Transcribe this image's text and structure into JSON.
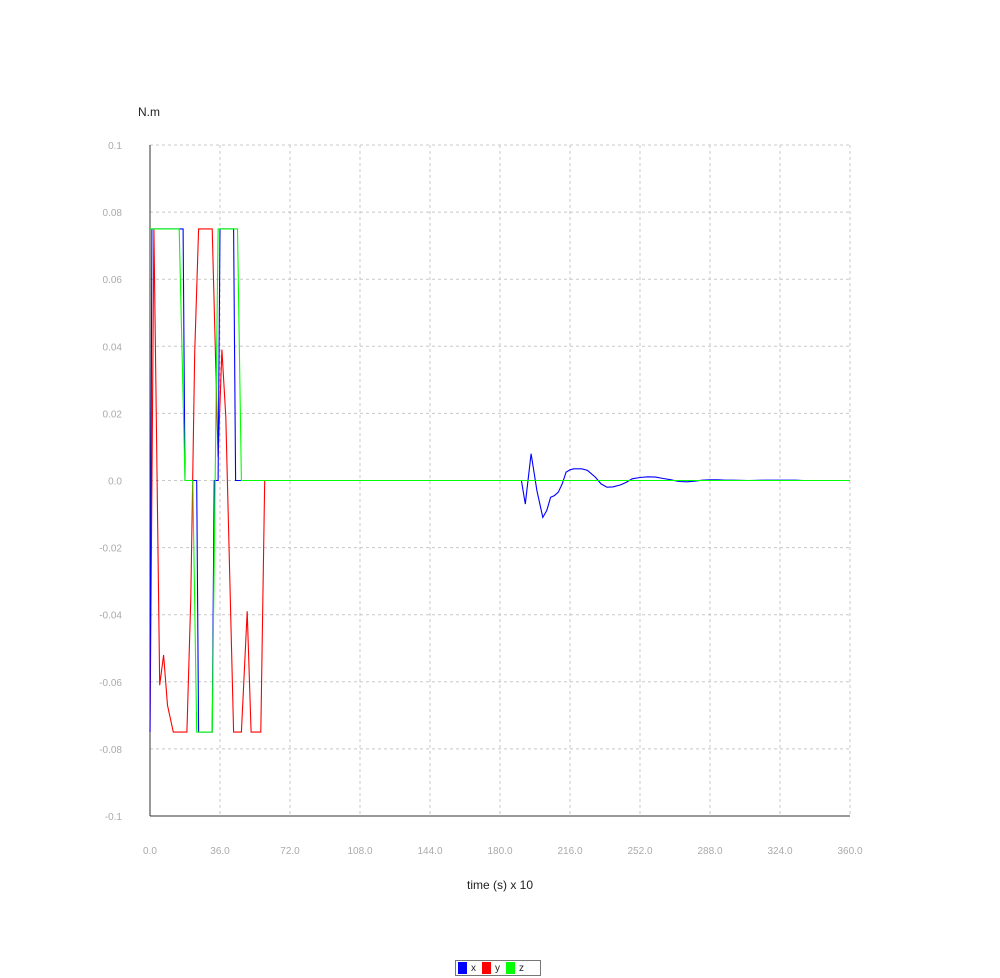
{
  "chart_data": {
    "type": "line",
    "title": "",
    "ylabel": "N.m",
    "xlabel": "time (s) x 10",
    "xlim": [
      0,
      360
    ],
    "ylim": [
      -0.1,
      0.1
    ],
    "x_ticks": [
      "0.0",
      "36.0",
      "72.0",
      "108.0",
      "144.0",
      "180.0",
      "216.0",
      "252.0",
      "288.0",
      "324.0",
      "360.0"
    ],
    "y_ticks": [
      "0.1",
      "0.08",
      "0.06",
      "0.04",
      "0.02",
      "0.0",
      "-0.02",
      "-0.04",
      "-0.06",
      "-0.08",
      "-0.1"
    ],
    "grid": true,
    "legend_position": "bottom-center",
    "series": [
      {
        "name": "x",
        "color": "#0000ff",
        "points": [
          [
            0,
            -0.075
          ],
          [
            1,
            0.075
          ],
          [
            17,
            0.075
          ],
          [
            18,
            0
          ],
          [
            24,
            0
          ],
          [
            25,
            -0.075
          ],
          [
            32,
            -0.075
          ],
          [
            33,
            0
          ],
          [
            35,
            0
          ],
          [
            36,
            0.075
          ],
          [
            43,
            0.075
          ],
          [
            44,
            0
          ],
          [
            186,
            0
          ],
          [
            191,
            0
          ],
          [
            193,
            -0.007
          ],
          [
            196,
            0.008
          ],
          [
            199,
            -0.003
          ],
          [
            202,
            -0.011
          ],
          [
            204,
            -0.009
          ],
          [
            206,
            -0.005
          ],
          [
            208,
            -0.0045
          ],
          [
            210,
            -0.0035
          ],
          [
            212,
            -0.001
          ],
          [
            214,
            0.0025
          ],
          [
            216,
            0.0032
          ],
          [
            218,
            0.0035
          ],
          [
            222,
            0.0035
          ],
          [
            225,
            0.003
          ],
          [
            229,
            0.001
          ],
          [
            232,
            -0.001
          ],
          [
            235,
            -0.002
          ],
          [
            238,
            -0.0019
          ],
          [
            242,
            -0.0013
          ],
          [
            245,
            -0.0005
          ],
          [
            248,
            0.0005
          ],
          [
            252,
            0.0009
          ],
          [
            256,
            0.0011
          ],
          [
            260,
            0.001
          ],
          [
            264,
            0.0006
          ],
          [
            268,
            0.0002
          ],
          [
            272,
            -0.0003
          ],
          [
            276,
            -0.0004
          ],
          [
            280,
            -0.0002
          ],
          [
            284,
            0.0001
          ],
          [
            288,
            0.0002
          ],
          [
            292,
            0.0002
          ],
          [
            296,
            0.0001
          ],
          [
            300,
            0.0001
          ],
          [
            308,
            0
          ],
          [
            316,
            0.0001
          ],
          [
            324,
            0.0001
          ],
          [
            332,
            0.0001
          ],
          [
            336,
            0
          ],
          [
            360,
            0
          ]
        ]
      },
      {
        "name": "y",
        "color": "#ff0000",
        "points": [
          [
            0,
            -0.075
          ],
          [
            2,
            0.075
          ],
          [
            5,
            -0.061
          ],
          [
            7,
            -0.052
          ],
          [
            9,
            -0.067
          ],
          [
            12,
            -0.075
          ],
          [
            19,
            -0.075
          ],
          [
            21,
            -0.035
          ],
          [
            23,
            0.038
          ],
          [
            25,
            0.075
          ],
          [
            32,
            0.075
          ],
          [
            35,
            0.007
          ],
          [
            37,
            0.039
          ],
          [
            39,
            0.019
          ],
          [
            43,
            -0.075
          ],
          [
            47,
            -0.075
          ],
          [
            50,
            -0.039
          ],
          [
            52,
            -0.075
          ],
          [
            57,
            -0.075
          ],
          [
            59,
            -0.0
          ],
          [
            360,
            0
          ]
        ]
      },
      {
        "name": "z",
        "color": "#00ff00",
        "points": [
          [
            0,
            0.075
          ],
          [
            15,
            0.075
          ],
          [
            18,
            0
          ],
          [
            22,
            0
          ],
          [
            24,
            -0.075
          ],
          [
            32,
            -0.075
          ],
          [
            35,
            0.075
          ],
          [
            45,
            0.075
          ],
          [
            47,
            0
          ],
          [
            360,
            0
          ]
        ]
      }
    ]
  }
}
